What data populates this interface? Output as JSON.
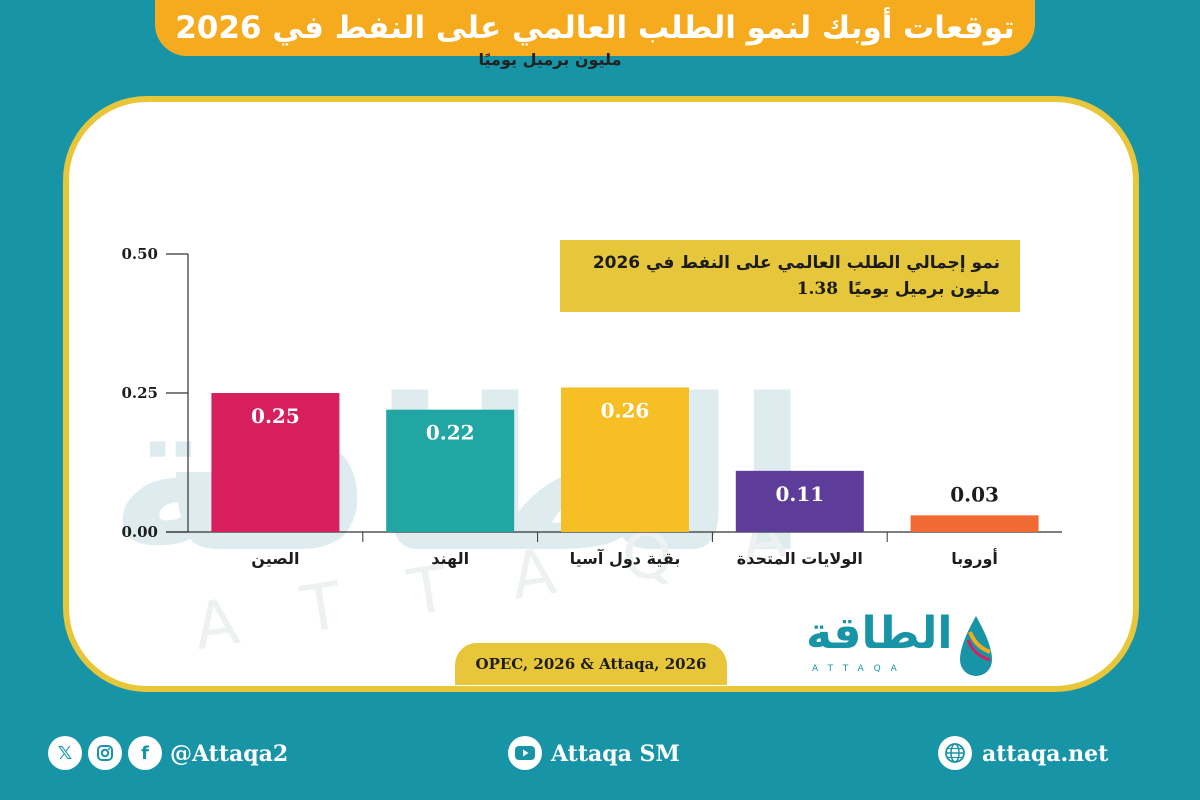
{
  "title": "توقعات أوبك لنمو الطلب العالمي على النفط في 2026",
  "colors": {
    "background": "#1894a7",
    "title_banner": "#f6ab1e",
    "card_border": "#e8c63a",
    "highlight_box": "#e6c73c"
  },
  "watermark": {
    "arabic": "الطاقة",
    "letters": "ATTAQA"
  },
  "highlight": {
    "line1": "نمو إجمالي الطلب العالمي على النفط في 2026",
    "value": "1.38",
    "unit": "مليون برميل يوميًا"
  },
  "source": "OPEC, 2026 & Attaqa, 2026",
  "logo": {
    "name": "الطاقة",
    "sub": "ATTAQA"
  },
  "footer": {
    "social_handle": "@Attaqa2",
    "youtube": "Attaqa SM",
    "website": "attaqa.net",
    "icons": [
      "x-icon",
      "instagram-icon",
      "facebook-icon",
      "youtube-icon",
      "globe-icon"
    ]
  },
  "chart_data": {
    "type": "bar",
    "ylabel": "مليون برميل يوميًا",
    "categories": [
      "الصين",
      "الهند",
      "بقية دول آسيا",
      "الولايات المتحدة",
      "أوروبا"
    ],
    "values": [
      0.25,
      0.22,
      0.26,
      0.11,
      0.03
    ],
    "value_labels": [
      "0.25",
      "0.22",
      "0.26",
      "0.11",
      "0.03"
    ],
    "colors": [
      "#d81f5e",
      "#21a6a4",
      "#f6bf26",
      "#5e3c99",
      "#f26a33"
    ],
    "yticks": [
      "0.00",
      "0.25",
      "0.50"
    ],
    "ytick_values": [
      0,
      0.25,
      0.5
    ],
    "ylim": [
      0,
      0.5
    ],
    "grid": false,
    "legend": "none"
  }
}
